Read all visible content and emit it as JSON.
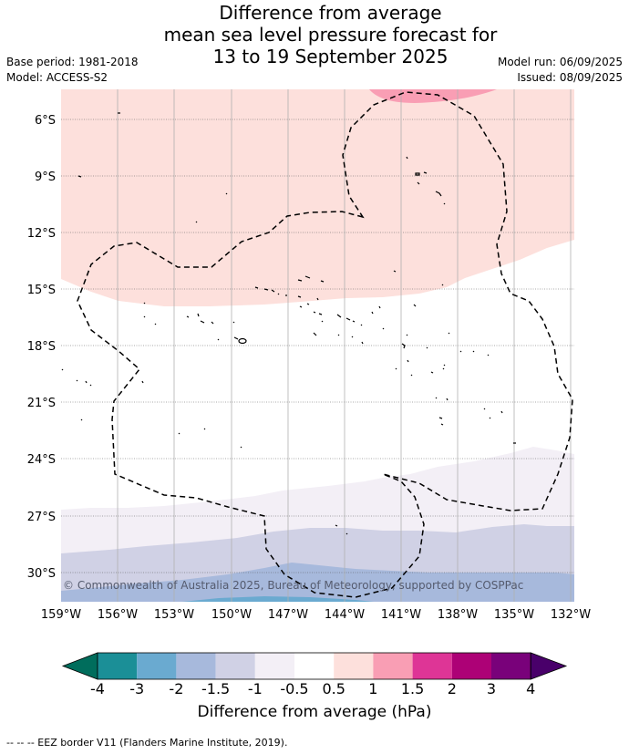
{
  "title": {
    "line1": "Difference from average",
    "line2": "mean sea level pressure forecast for",
    "line3": "13 to 19 September 2025"
  },
  "meta": {
    "base_period": "Base period: 1981-2018",
    "model": "Model: ACCESS-S2",
    "model_run": "Model run: 06/09/2025",
    "issued": "Issued: 08/09/2025"
  },
  "map": {
    "lat_labels": [
      "6°S",
      "9°S",
      "12°S",
      "15°S",
      "18°S",
      "21°S",
      "24°S",
      "27°S",
      "30°S"
    ],
    "lon_labels": [
      "159°W",
      "156°W",
      "153°W",
      "150°W",
      "147°W",
      "144°W",
      "141°W",
      "138°W",
      "135°W",
      "132°W"
    ],
    "copyright": "© Commonwealth of Australia 2025, Bureau of Meteorology, supported by COSPPac",
    "border_line": "dashed black"
  },
  "colorbar": {
    "tick_labels": [
      "-4",
      "-3",
      "-2",
      "-1.5",
      "-1",
      "-0.5",
      "0.5",
      "1",
      "1.5",
      "2",
      "3",
      "4"
    ],
    "colors": [
      "#1b8f97",
      "#6aaad0",
      "#a7b9dc",
      "#d0d1e5",
      "#f3eff6",
      "#ffffff",
      "#fde0dc",
      "#f99eb4",
      "#de3596",
      "#ad0176",
      "#79017a"
    ],
    "under_color": "#006d5c",
    "over_color": "#49006a",
    "label": "Difference from average (hPa)"
  },
  "footer": {
    "legend": "--  --  -- EEZ border V11 (Flanders Marine Institute, 2019)."
  }
}
